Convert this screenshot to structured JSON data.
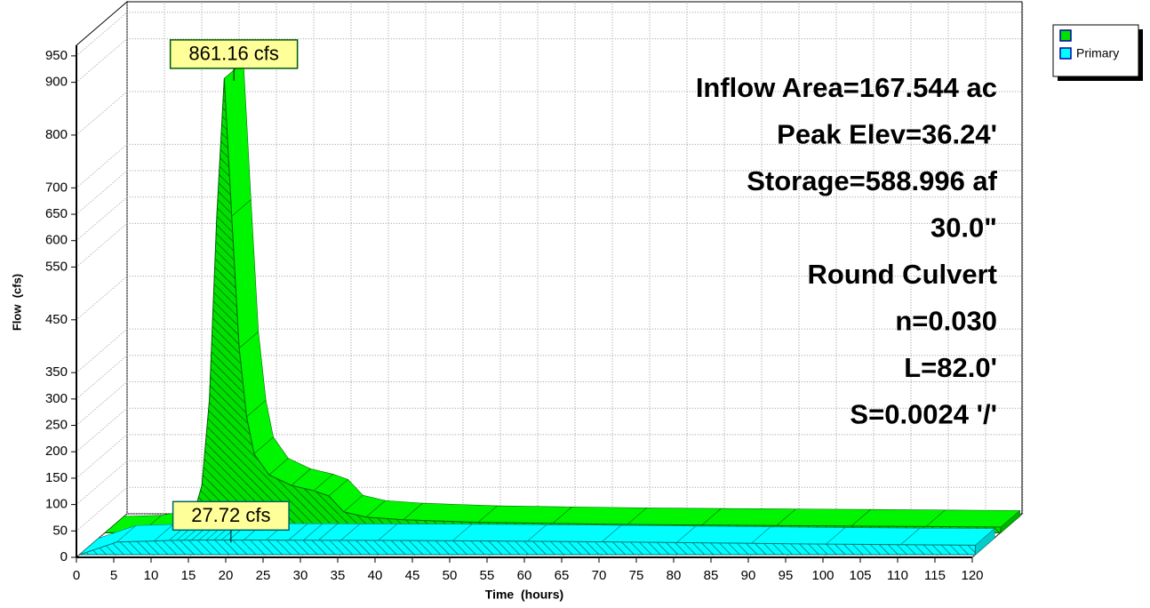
{
  "chart_data": {
    "type": "area3d",
    "xlabel": "Time  (hours)",
    "ylabel": "Flow  (cfs)",
    "x": [
      0,
      5,
      10,
      12,
      13,
      14,
      15,
      16,
      17,
      18,
      19,
      20,
      22,
      25,
      28,
      30,
      32,
      35,
      40,
      50,
      60,
      70,
      80,
      90,
      100,
      110,
      120
    ],
    "series": [
      {
        "color": "#00e000",
        "values": [
          0,
          2,
          15,
          40,
          90,
          250,
          600,
          861.16,
          600,
          350,
          220,
          150,
          110,
          90,
          80,
          70,
          40,
          30,
          25,
          20,
          18,
          16,
          15,
          14,
          13,
          12,
          11
        ],
        "value_labels": [
          null,
          null,
          null,
          null,
          null,
          null,
          null,
          "861.16 cfs",
          null,
          null,
          null,
          null,
          null,
          null,
          null,
          null,
          null,
          null,
          null,
          null,
          null,
          null,
          null,
          null,
          null,
          null,
          null
        ]
      },
      {
        "name": "Primary",
        "color": "#00ffff",
        "values": [
          0,
          24,
          26,
          27,
          27.2,
          27.4,
          27.5,
          27.6,
          27.65,
          27.7,
          27.72,
          27.72,
          27.7,
          27.6,
          27.5,
          27.4,
          27.3,
          27.2,
          27,
          26.5,
          25.5,
          24.5,
          23,
          21.5,
          20,
          19,
          18
        ],
        "value_labels": [
          null,
          null,
          null,
          null,
          null,
          null,
          null,
          null,
          null,
          null,
          "27.72 cfs",
          null,
          null,
          null,
          null,
          null,
          null,
          null,
          null,
          null,
          null,
          null,
          null,
          null,
          null,
          null,
          null
        ]
      }
    ],
    "xlim": [
      0,
      120
    ],
    "xticks": [
      0,
      5,
      10,
      15,
      20,
      25,
      30,
      35,
      40,
      45,
      50,
      55,
      60,
      65,
      70,
      75,
      80,
      85,
      90,
      95,
      100,
      105,
      110,
      115,
      120
    ],
    "ylim": [
      0,
      970
    ],
    "yticks": [
      0,
      50,
      100,
      150,
      200,
      250,
      300,
      350,
      450,
      550,
      600,
      650,
      700,
      800,
      900,
      950
    ],
    "grid": true,
    "legend": "upper right",
    "annotations": [
      "Inflow Area=167.544 ac",
      "Peak Elev=36.24'",
      "Storage=588.996 af",
      "30.0\"",
      "Round Culvert",
      "n=0.030",
      "L=82.0'",
      "S=0.0024 '/'"
    ]
  }
}
